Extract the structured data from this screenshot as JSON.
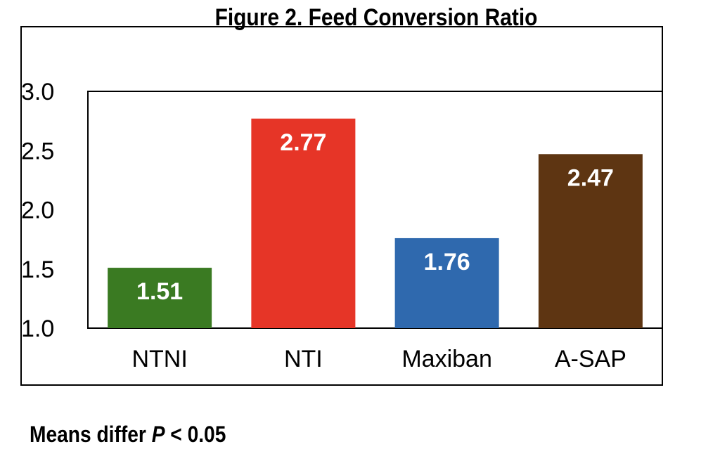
{
  "chart_data": {
    "type": "bar",
    "title": "Figure 2. Feed Conversion Ratio",
    "categories": [
      "NTNI",
      "NTI",
      "Maxiban",
      "A-SAP"
    ],
    "values": [
      1.51,
      2.77,
      1.76,
      2.47
    ],
    "data_labels": [
      "1.51",
      "2.77",
      "1.76",
      "2.47"
    ],
    "colors": [
      "#3a7a22",
      "#e63527",
      "#2f69ae",
      "#5e3512"
    ],
    "ylim": [
      1.0,
      3.0
    ],
    "yticks": [
      "1.0",
      "1.5",
      "2.0",
      "2.5",
      "3.0"
    ],
    "ytick_values": [
      1.0,
      1.5,
      2.0,
      2.5,
      3.0
    ],
    "grid": false,
    "xlabel": "",
    "ylabel": ""
  },
  "footnote": {
    "prefix": "Means differ ",
    "italic": "P",
    "suffix": " < 0.05"
  }
}
